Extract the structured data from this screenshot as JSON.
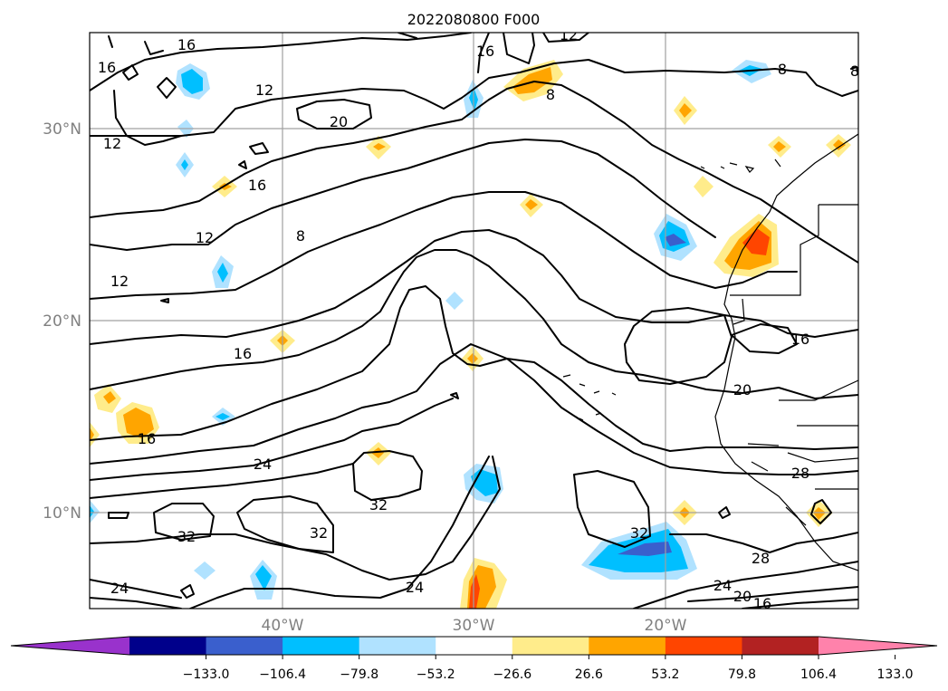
{
  "title": "2022080800 F000",
  "map": {
    "lat_labels": [
      "30°N",
      "20°N",
      "10°N"
    ],
    "lon_labels": [
      "40°W",
      "30°W",
      "20°W"
    ],
    "contour_labels": [
      "16",
      "16",
      "12",
      "12",
      "20",
      "16",
      "8",
      "12",
      "12",
      "8",
      "12",
      "16",
      "16",
      "24",
      "32",
      "32",
      "32",
      "24",
      "24",
      "32",
      "28",
      "24",
      "20",
      "16",
      "20",
      "16",
      "28",
      "8",
      "8",
      "16"
    ]
  },
  "colorbar": {
    "ticks": [
      "−133.0",
      "−106.4",
      "−79.8",
      "−53.2",
      "−26.6",
      "26.6",
      "53.2",
      "79.8",
      "106.4",
      "133.0"
    ],
    "colors": [
      "#9932cc",
      "#00008b",
      "#3a5fcd",
      "#00bfff",
      "#b0e2ff",
      "#ffffff",
      "#ffec8b",
      "#ffa500",
      "#ff4500",
      "#b22222",
      "#ff82ab"
    ]
  }
}
